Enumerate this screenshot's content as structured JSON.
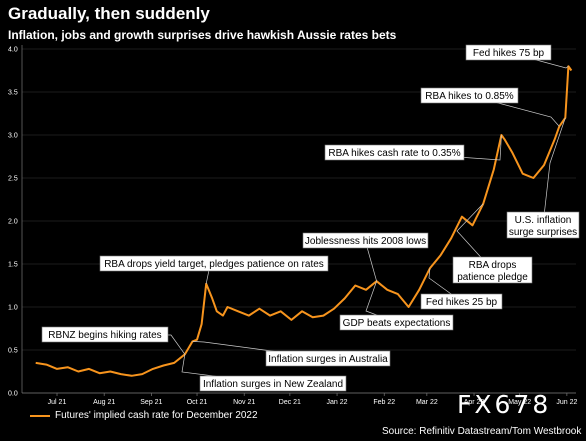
{
  "chart_data": {
    "type": "line",
    "title": "Gradually, then suddenly",
    "subtitle": "Inflation, jobs and growth surprises drive hawkish Aussie rates bets",
    "ylim": [
      0,
      4.0
    ],
    "yticks": [
      "0.0",
      "0.5",
      "1.0",
      "1.5",
      "2.0",
      "2.5",
      "3.0",
      "3.5",
      "4.0"
    ],
    "xticks": [
      "Jul 21",
      "Aug 21",
      "Sep 21",
      "Oct 21",
      "Nov 21",
      "Dec 21",
      "Jan 22",
      "Feb 22",
      "Mar 22",
      "Apr 22",
      "May 22",
      "Jun 22"
    ],
    "grid": true,
    "legend_position": "bottom-left",
    "series": [
      {
        "name": "Futures' implied cash rate for December 2022",
        "color": "#f7941d",
        "x": [
          "2021-07-01",
          "2021-07-08",
          "2021-07-15",
          "2021-07-22",
          "2021-07-29",
          "2021-08-05",
          "2021-08-12",
          "2021-08-19",
          "2021-08-26",
          "2021-09-02",
          "2021-09-09",
          "2021-09-16",
          "2021-09-23",
          "2021-09-30",
          "2021-10-07",
          "2021-10-12",
          "2021-10-15",
          "2021-10-18",
          "2021-10-21",
          "2021-10-25",
          "2021-10-28",
          "2021-11-01",
          "2021-11-04",
          "2021-11-11",
          "2021-11-18",
          "2021-11-25",
          "2021-12-02",
          "2021-12-09",
          "2021-12-16",
          "2021-12-23",
          "2021-12-30",
          "2022-01-06",
          "2022-01-13",
          "2022-01-20",
          "2022-01-27",
          "2022-02-03",
          "2022-02-10",
          "2022-02-17",
          "2022-02-24",
          "2022-03-03",
          "2022-03-10",
          "2022-03-17",
          "2022-03-24",
          "2022-03-31",
          "2022-04-07",
          "2022-04-14",
          "2022-04-21",
          "2022-04-28",
          "2022-05-03",
          "2022-05-05",
          "2022-05-10",
          "2022-05-17",
          "2022-05-24",
          "2022-05-31",
          "2022-06-07",
          "2022-06-10",
          "2022-06-14",
          "2022-06-16",
          "2022-06-18"
        ],
        "values": [
          0.35,
          0.33,
          0.28,
          0.3,
          0.25,
          0.28,
          0.23,
          0.25,
          0.22,
          0.2,
          0.22,
          0.28,
          0.32,
          0.35,
          0.45,
          0.6,
          0.62,
          0.8,
          1.27,
          1.1,
          0.95,
          0.9,
          1.0,
          0.95,
          0.9,
          0.98,
          0.9,
          0.95,
          0.85,
          0.95,
          0.88,
          0.9,
          0.98,
          1.1,
          1.25,
          1.2,
          1.3,
          1.2,
          1.15,
          1.0,
          1.2,
          1.45,
          1.6,
          1.8,
          2.05,
          1.95,
          2.2,
          2.6,
          3.0,
          2.95,
          2.8,
          2.55,
          2.5,
          2.65,
          2.95,
          3.1,
          3.2,
          3.8,
          3.75
        ]
      }
    ],
    "annotations": [
      "RBNZ begins hiking rates",
      "Inflation surges in New Zealand",
      "RBA drops yield target, pledges patience on rates",
      "Inflation surges in Australia",
      "Joblessness hits 2008 lows",
      "GDP beats expectations",
      "Fed hikes 25 bp",
      "RBA drops patience pledge",
      "RBA hikes cash rate to 0.35%",
      "RBA hikes to 0.85%",
      "Fed hikes 75 bp",
      "U.S. inflation surge surprises"
    ]
  },
  "legend_label": "Futures' implied cash rate for December 2022",
  "source": "Source: Refinitiv Datastream/Tom Westbrook",
  "watermark": "FX678"
}
